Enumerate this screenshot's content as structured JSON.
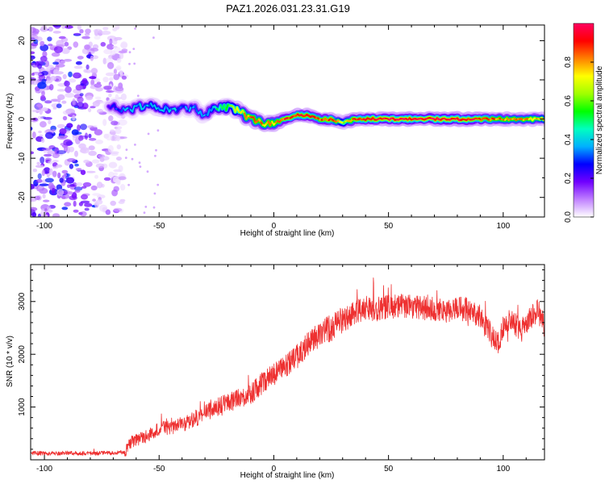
{
  "figure": {
    "title": "PAZ1.2026.031.23.31.G19"
  },
  "chart_data": [
    {
      "type": "heatmap",
      "xlabel": "Height of straight line (km)",
      "ylabel": "Frequency (Hz)",
      "xlim": [
        -106,
        118
      ],
      "ylim": [
        -25,
        24
      ],
      "xticks": [
        -100,
        -50,
        0,
        50,
        100
      ],
      "yticks": [
        -20,
        -10,
        0,
        10,
        20
      ],
      "grid": false,
      "colorbar": {
        "label": "Normalized spectral amplitude",
        "range": [
          0,
          1
        ],
        "ticks": [
          "0.0",
          "0.2",
          "0.4",
          "0.6",
          "0.8"
        ],
        "colors": [
          "#ffffff",
          "#c080ff",
          "#7000ff",
          "#0000ff",
          "#00b0ff",
          "#00ffc0",
          "#00ff00",
          "#a0ff00",
          "#ffff00",
          "#ff8000",
          "#ff0000",
          "#ff0060"
        ]
      },
      "ridge": {
        "x": [
          -72,
          -65,
          -60,
          -55,
          -50,
          -45,
          -40,
          -35,
          -30,
          -25,
          -20,
          -15,
          -10,
          -5,
          0,
          5,
          10,
          15,
          20,
          25,
          30,
          35,
          40,
          50,
          60,
          70,
          80,
          90,
          100,
          110,
          118
        ],
        "frequency": [
          3.5,
          2,
          3,
          3.5,
          3,
          2,
          2.5,
          3,
          1,
          3,
          3,
          2,
          0,
          -1,
          -1,
          0,
          1,
          1,
          0,
          0,
          -1,
          0,
          0,
          0,
          0,
          0,
          0,
          0,
          0,
          0,
          0
        ],
        "amplitude": [
          0.25,
          0.3,
          0.35,
          0.35,
          0.35,
          0.35,
          0.3,
          0.3,
          0.3,
          0.45,
          0.55,
          0.65,
          0.8,
          0.75,
          0.75,
          0.85,
          0.85,
          0.85,
          0.8,
          0.85,
          0.6,
          0.85,
          0.85,
          0.9,
          0.9,
          0.9,
          0.9,
          0.85,
          0.75,
          0.75,
          0.7
        ]
      },
      "noise_region": {
        "x_range": [
          -106,
          -65
        ],
        "level": "low"
      }
    },
    {
      "type": "line",
      "xlabel": "Height of straight line (km)",
      "ylabel": "SNR (10 * v/v)",
      "xlim": [
        -106,
        118
      ],
      "ylim": [
        0,
        3700
      ],
      "xticks": [
        -100,
        -50,
        0,
        50,
        100
      ],
      "yticks": [
        1000,
        2000,
        3000
      ],
      "grid": false,
      "color": "#ee3030",
      "x": [
        -106,
        -100,
        -90,
        -80,
        -70,
        -65,
        -62,
        -55,
        -50,
        -45,
        -40,
        -35,
        -30,
        -25,
        -20,
        -15,
        -10,
        -5,
        0,
        5,
        10,
        15,
        20,
        25,
        30,
        35,
        40,
        45,
        50,
        55,
        60,
        65,
        70,
        75,
        80,
        85,
        90,
        95,
        98,
        100,
        103,
        108,
        112,
        115,
        118
      ],
      "y": [
        130,
        120,
        130,
        120,
        130,
        150,
        350,
        450,
        580,
        620,
        660,
        760,
        880,
        1000,
        1080,
        1160,
        1250,
        1450,
        1620,
        1780,
        1950,
        2200,
        2380,
        2500,
        2640,
        2780,
        2880,
        2850,
        2900,
        2920,
        2900,
        2880,
        2850,
        2820,
        2860,
        2850,
        2700,
        2350,
        2200,
        2500,
        2700,
        2450,
        2700,
        2850,
        2500
      ]
    }
  ]
}
